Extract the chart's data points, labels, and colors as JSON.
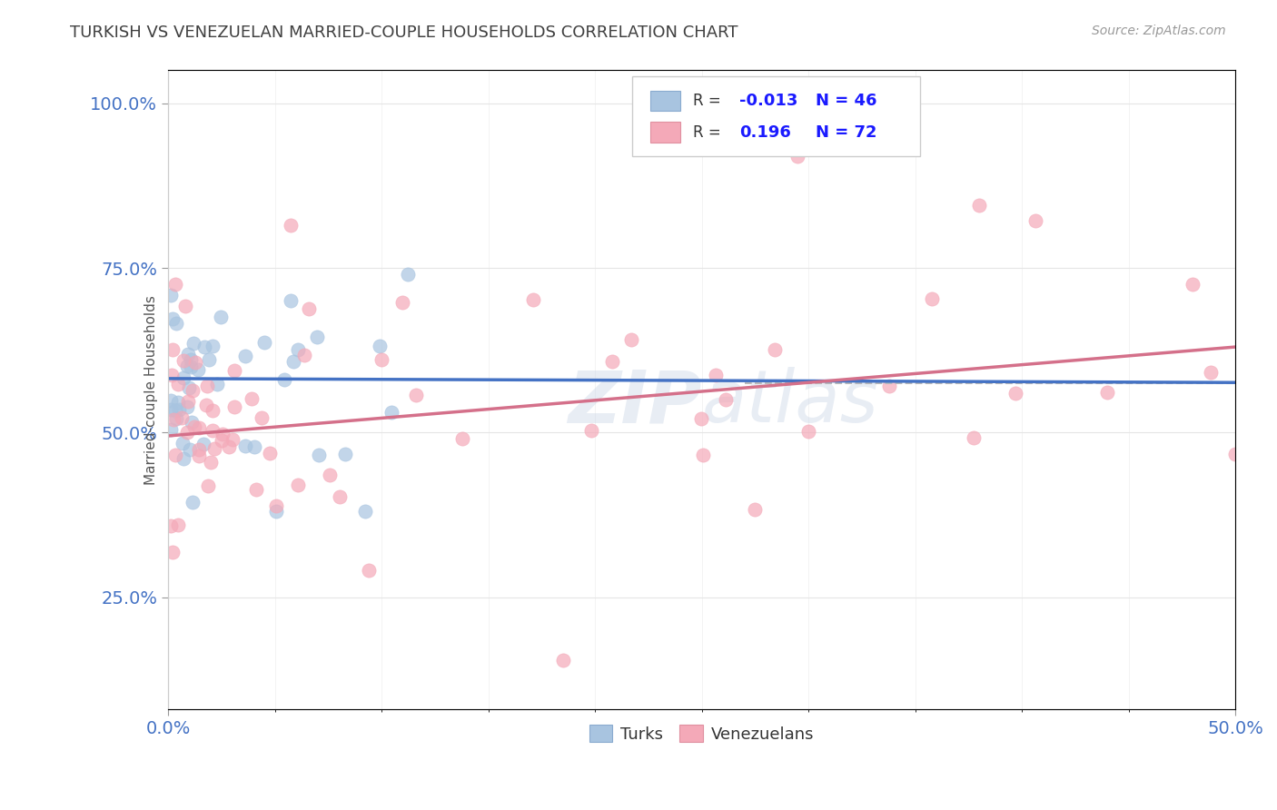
{
  "title": "TURKISH VS VENEZUELAN MARRIED-COUPLE HOUSEHOLDS CORRELATION CHART",
  "source": "Source: ZipAtlas.com",
  "ylabel": "Married-couple Households",
  "xmin": 0.0,
  "xmax": 0.5,
  "ymin": 0.08,
  "ymax": 1.05,
  "yticks": [
    0.25,
    0.5,
    0.75,
    1.0
  ],
  "ytick_labels": [
    "25.0%",
    "50.0%",
    "75.0%",
    "100.0%"
  ],
  "turks_R": -0.013,
  "turks_N": 46,
  "venezuelans_R": 0.196,
  "venezuelans_N": 72,
  "turks_color": "#a8c4e0",
  "venezuelans_color": "#f4a9b8",
  "turks_line_color": "#4472c4",
  "venezuelans_line_color": "#d4708a",
  "dashed_line_y": 0.575,
  "dashed_line_color": "#bbbbbb",
  "watermark": "ZIPatlas",
  "title_color": "#404040",
  "axis_label_color": "#4472c4",
  "legend_r_color": "#1a1aff",
  "turks_line_y0": 0.582,
  "turks_line_y1": 0.576,
  "venezuelans_line_y0": 0.495,
  "venezuelans_line_y1": 0.63
}
